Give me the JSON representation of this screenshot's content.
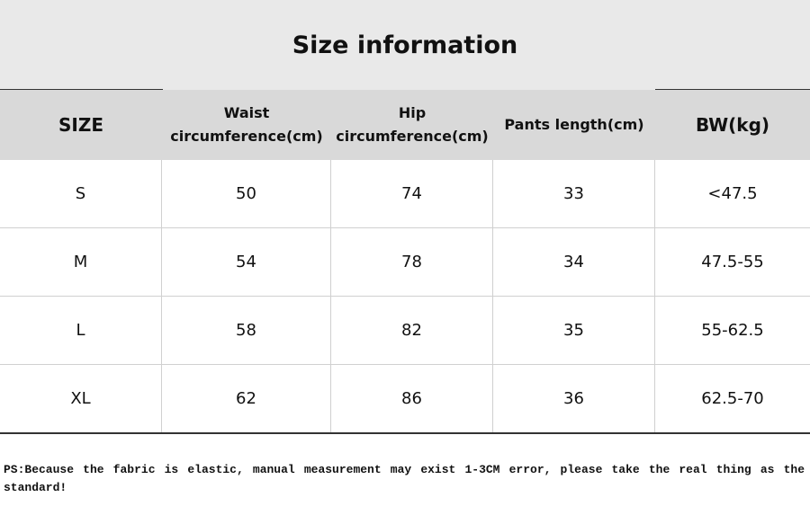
{
  "title": "Size information",
  "table": {
    "headers": [
      "SIZE",
      "Waist circumference(cm)",
      "Hip circumference(cm)",
      "Pants length(cm)",
      "BW(kg)"
    ],
    "rows": [
      [
        "S",
        50,
        74,
        33,
        "<47.5"
      ],
      [
        "M",
        54,
        78,
        34,
        "47.5-55"
      ],
      [
        "L",
        58,
        82,
        35,
        "55-62.5"
      ],
      [
        "XL",
        62,
        86,
        36,
        "62.5-70"
      ]
    ]
  },
  "note": "PS:Because the fabric is elastic, manual measurement may exist 1-3CM error, please take the real thing as the standard!"
}
